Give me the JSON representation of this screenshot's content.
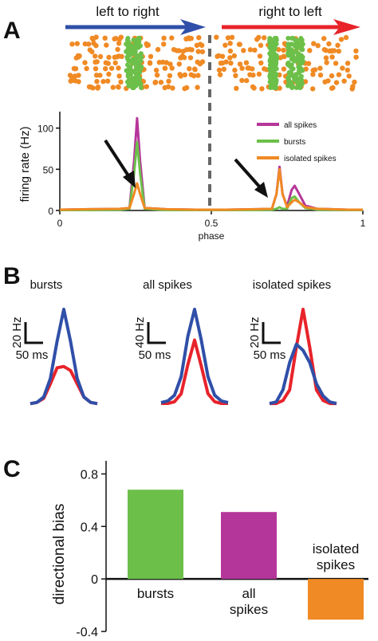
{
  "figure": {
    "panels": [
      "A",
      "B",
      "C"
    ]
  },
  "colors": {
    "all_spikes": "#b5369a",
    "bursts": "#6cc04a",
    "isolated_spikes": "#f08a24",
    "left_to_right": "#2f4fa8",
    "right_to_left": "#e8232a",
    "raster_dot": "#f08a24",
    "raster_burst": "#6cc04a",
    "divider": "#666666",
    "arrow": "#111111"
  },
  "panel_a": {
    "direction_left": "left to right",
    "direction_right": "right to left",
    "legend": [
      "all spikes",
      "bursts",
      "isolated spikes"
    ]
  },
  "panel_b": {
    "titles": [
      "bursts",
      "all spikes",
      "isolated spikes"
    ],
    "scalebars": [
      {
        "amp": "20 Hz",
        "time": "50 ms"
      },
      {
        "amp": "40 Hz",
        "time": "50 ms"
      },
      {
        "amp": "20 Hz",
        "time": "50 ms"
      }
    ]
  },
  "chart_data": [
    {
      "type": "line",
      "ylabel": "firing rate (Hz)",
      "xlabel": "phase",
      "xlim": [
        0,
        1
      ],
      "ylim": [
        0,
        120
      ],
      "xticks": [
        0,
        0.5,
        1
      ],
      "xtick_labels": [
        "0",
        "0.5",
        "1"
      ],
      "yticks": [
        0,
        50,
        100
      ],
      "ytick_labels": [
        "0",
        "50",
        "100"
      ],
      "divider_x": 0.5,
      "legend_position": "top-right",
      "series": [
        {
          "name": "all spikes",
          "color": "#b5369a",
          "points": [
            [
              0,
              1
            ],
            [
              0.1,
              1.5
            ],
            [
              0.2,
              2
            ],
            [
              0.23,
              3
            ],
            [
              0.245,
              60
            ],
            [
              0.255,
              112
            ],
            [
              0.265,
              60
            ],
            [
              0.28,
              3
            ],
            [
              0.35,
              1.5
            ],
            [
              0.45,
              1
            ],
            [
              0.55,
              1
            ],
            [
              0.65,
              1.5
            ],
            [
              0.7,
              2
            ],
            [
              0.715,
              20
            ],
            [
              0.725,
              53
            ],
            [
              0.735,
              20
            ],
            [
              0.75,
              5
            ],
            [
              0.765,
              25
            ],
            [
              0.775,
              30
            ],
            [
              0.79,
              20
            ],
            [
              0.81,
              6
            ],
            [
              0.85,
              2
            ],
            [
              0.95,
              1
            ],
            [
              1,
              1
            ]
          ]
        },
        {
          "name": "bursts",
          "color": "#6cc04a",
          "points": [
            [
              0,
              0.5
            ],
            [
              0.1,
              0.5
            ],
            [
              0.2,
              1
            ],
            [
              0.23,
              2
            ],
            [
              0.245,
              45
            ],
            [
              0.255,
              83
            ],
            [
              0.265,
              45
            ],
            [
              0.28,
              2
            ],
            [
              0.35,
              0.5
            ],
            [
              0.45,
              0.5
            ],
            [
              0.55,
              0.5
            ],
            [
              0.65,
              0.5
            ],
            [
              0.7,
              1
            ],
            [
              0.715,
              2
            ],
            [
              0.725,
              4
            ],
            [
              0.735,
              2
            ],
            [
              0.75,
              2
            ],
            [
              0.765,
              15
            ],
            [
              0.775,
              17
            ],
            [
              0.79,
              10
            ],
            [
              0.81,
              3
            ],
            [
              0.85,
              1
            ],
            [
              0.95,
              0.5
            ],
            [
              1,
              0.5
            ]
          ]
        },
        {
          "name": "isolated spikes",
          "color": "#f08a24",
          "points": [
            [
              0,
              1
            ],
            [
              0.1,
              1.5
            ],
            [
              0.2,
              2
            ],
            [
              0.23,
              3
            ],
            [
              0.245,
              20
            ],
            [
              0.255,
              33
            ],
            [
              0.265,
              20
            ],
            [
              0.28,
              3
            ],
            [
              0.35,
              1.5
            ],
            [
              0.45,
              1
            ],
            [
              0.55,
              1
            ],
            [
              0.65,
              1.5
            ],
            [
              0.7,
              2
            ],
            [
              0.715,
              20
            ],
            [
              0.725,
              50
            ],
            [
              0.735,
              20
            ],
            [
              0.75,
              4
            ],
            [
              0.765,
              10
            ],
            [
              0.775,
              13
            ],
            [
              0.79,
              10
            ],
            [
              0.81,
              4
            ],
            [
              0.85,
              2
            ],
            [
              0.95,
              1
            ],
            [
              1,
              1
            ]
          ]
        }
      ]
    },
    {
      "type": "line",
      "title": "bursts",
      "series": [
        {
          "name": "left to right",
          "color": "#2f4fa8",
          "values": [
            1,
            2,
            6,
            20,
            48,
            72,
            48,
            20,
            6,
            2,
            1
          ]
        },
        {
          "name": "right to left",
          "color": "#e8232a",
          "values": [
            1,
            2,
            5,
            16,
            28,
            29,
            26,
            16,
            6,
            2,
            1
          ]
        }
      ]
    },
    {
      "type": "line",
      "title": "all spikes",
      "series": [
        {
          "name": "left to right",
          "color": "#2f4fa8",
          "values": [
            3,
            5,
            12,
            35,
            85,
            118,
            80,
            35,
            12,
            5,
            3
          ]
        },
        {
          "name": "right to left",
          "color": "#e8232a",
          "values": [
            2,
            2,
            4,
            14,
            50,
            80,
            48,
            14,
            4,
            2,
            2
          ]
        }
      ]
    },
    {
      "type": "line",
      "title": "isolated spikes",
      "series": [
        {
          "name": "left to right",
          "color": "#2f4fa8",
          "values": [
            1,
            2,
            10,
            28,
            40,
            36,
            28,
            14,
            6,
            2,
            1
          ]
        },
        {
          "name": "right to left",
          "color": "#e8232a",
          "values": [
            1,
            1,
            3,
            10,
            38,
            63,
            38,
            10,
            3,
            1,
            1
          ]
        }
      ]
    },
    {
      "type": "bar",
      "ylabel": "directional bias",
      "ylim": [
        -0.4,
        0.9
      ],
      "yticks": [
        -0.4,
        0,
        0.4,
        0.8
      ],
      "ytick_labels": [
        "-0.4",
        "0",
        "0.4",
        "0.8"
      ],
      "categories": [
        "bursts",
        "all spikes",
        "isolated spikes"
      ],
      "category_labels": [
        [
          "bursts"
        ],
        [
          "all",
          "spikes"
        ],
        [
          "isolated",
          "spikes"
        ]
      ],
      "values": [
        0.68,
        0.51,
        -0.31
      ],
      "colors": [
        "#6cc04a",
        "#b5369a",
        "#f08a24"
      ]
    }
  ]
}
